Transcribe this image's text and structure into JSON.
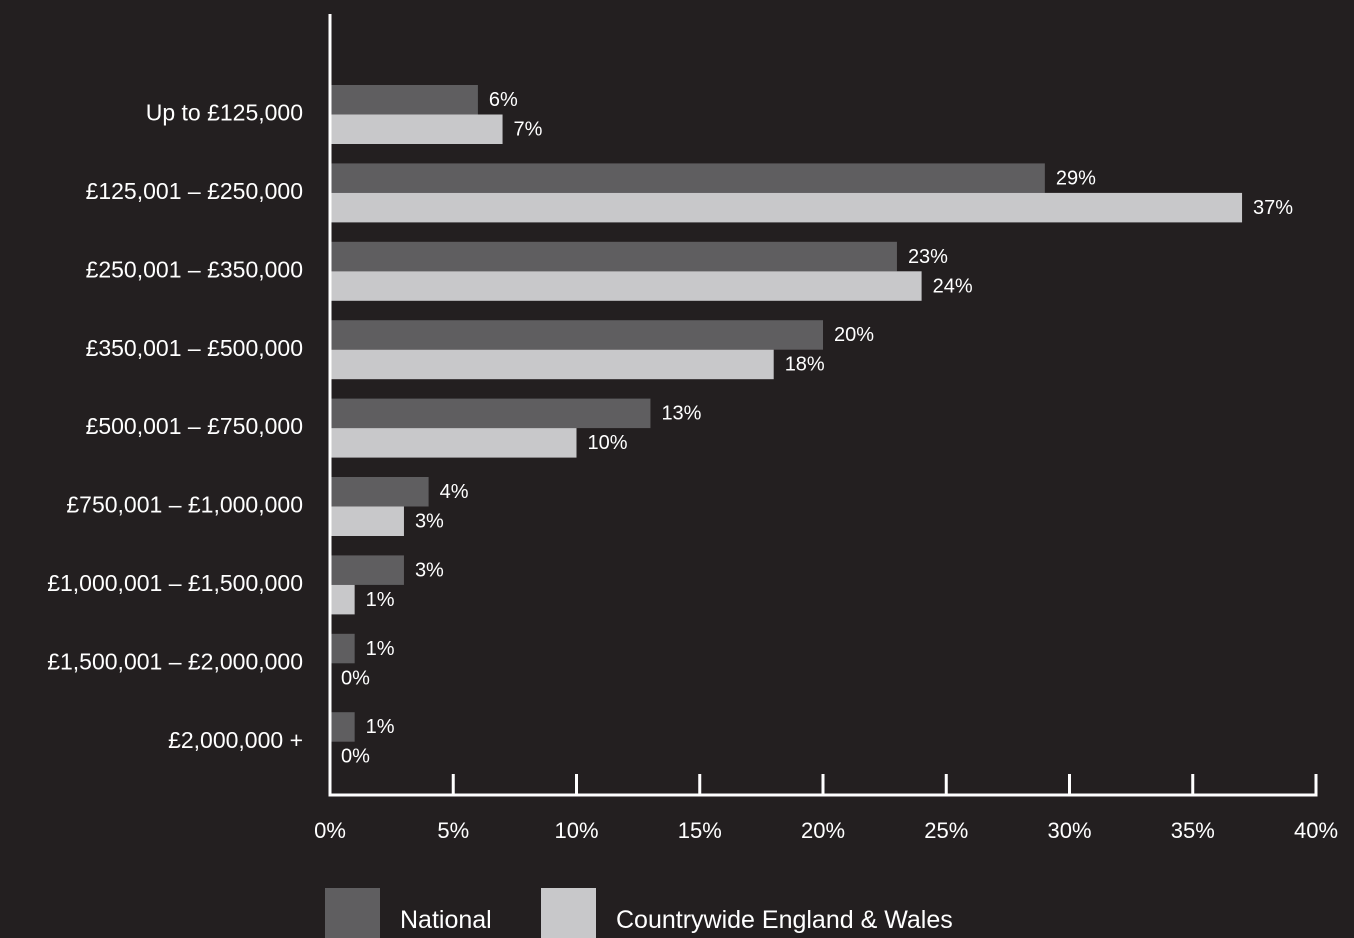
{
  "colors": {
    "background": "#231f20",
    "national": "#5f5e60",
    "countrywide": "#c8c8ca",
    "axis": "#ffffff",
    "text": "#ffffff"
  },
  "chart_data": {
    "type": "bar",
    "orientation": "horizontal",
    "title": "",
    "xlabel": "",
    "ylabel": "",
    "xlim": [
      0,
      40
    ],
    "grid": false,
    "legend_position": "bottom",
    "categories": [
      "Up to £125,000",
      "£125,001 – £250,000",
      "£250,001 – £350,000",
      "£350,001 – £500,000",
      "£500,001 – £750,000",
      "£750,001 – £1,000,000",
      "£1,000,001 – £1,500,000",
      "£1,500,001 – £2,000,000",
      "£2,000,000 +"
    ],
    "x_ticks": [
      "0%",
      "5%",
      "10%",
      "15%",
      "20%",
      "25%",
      "30%",
      "35%",
      "40%"
    ],
    "x_tick_values": [
      0,
      5,
      10,
      15,
      20,
      25,
      30,
      35,
      40
    ],
    "series": [
      {
        "name": "National",
        "values": [
          6,
          29,
          23,
          20,
          13,
          4,
          3,
          1,
          1
        ],
        "labels": [
          "6%",
          "29%",
          "23%",
          "20%",
          "13%",
          "4%",
          "3%",
          "1%",
          "1%"
        ]
      },
      {
        "name": "Countrywide England & Wales",
        "values": [
          7,
          37,
          24,
          18,
          10,
          3,
          1,
          0,
          0
        ],
        "labels": [
          "7%",
          "37%",
          "24%",
          "18%",
          "10%",
          "3%",
          "1%",
          "0%",
          "0%"
        ]
      }
    ]
  }
}
